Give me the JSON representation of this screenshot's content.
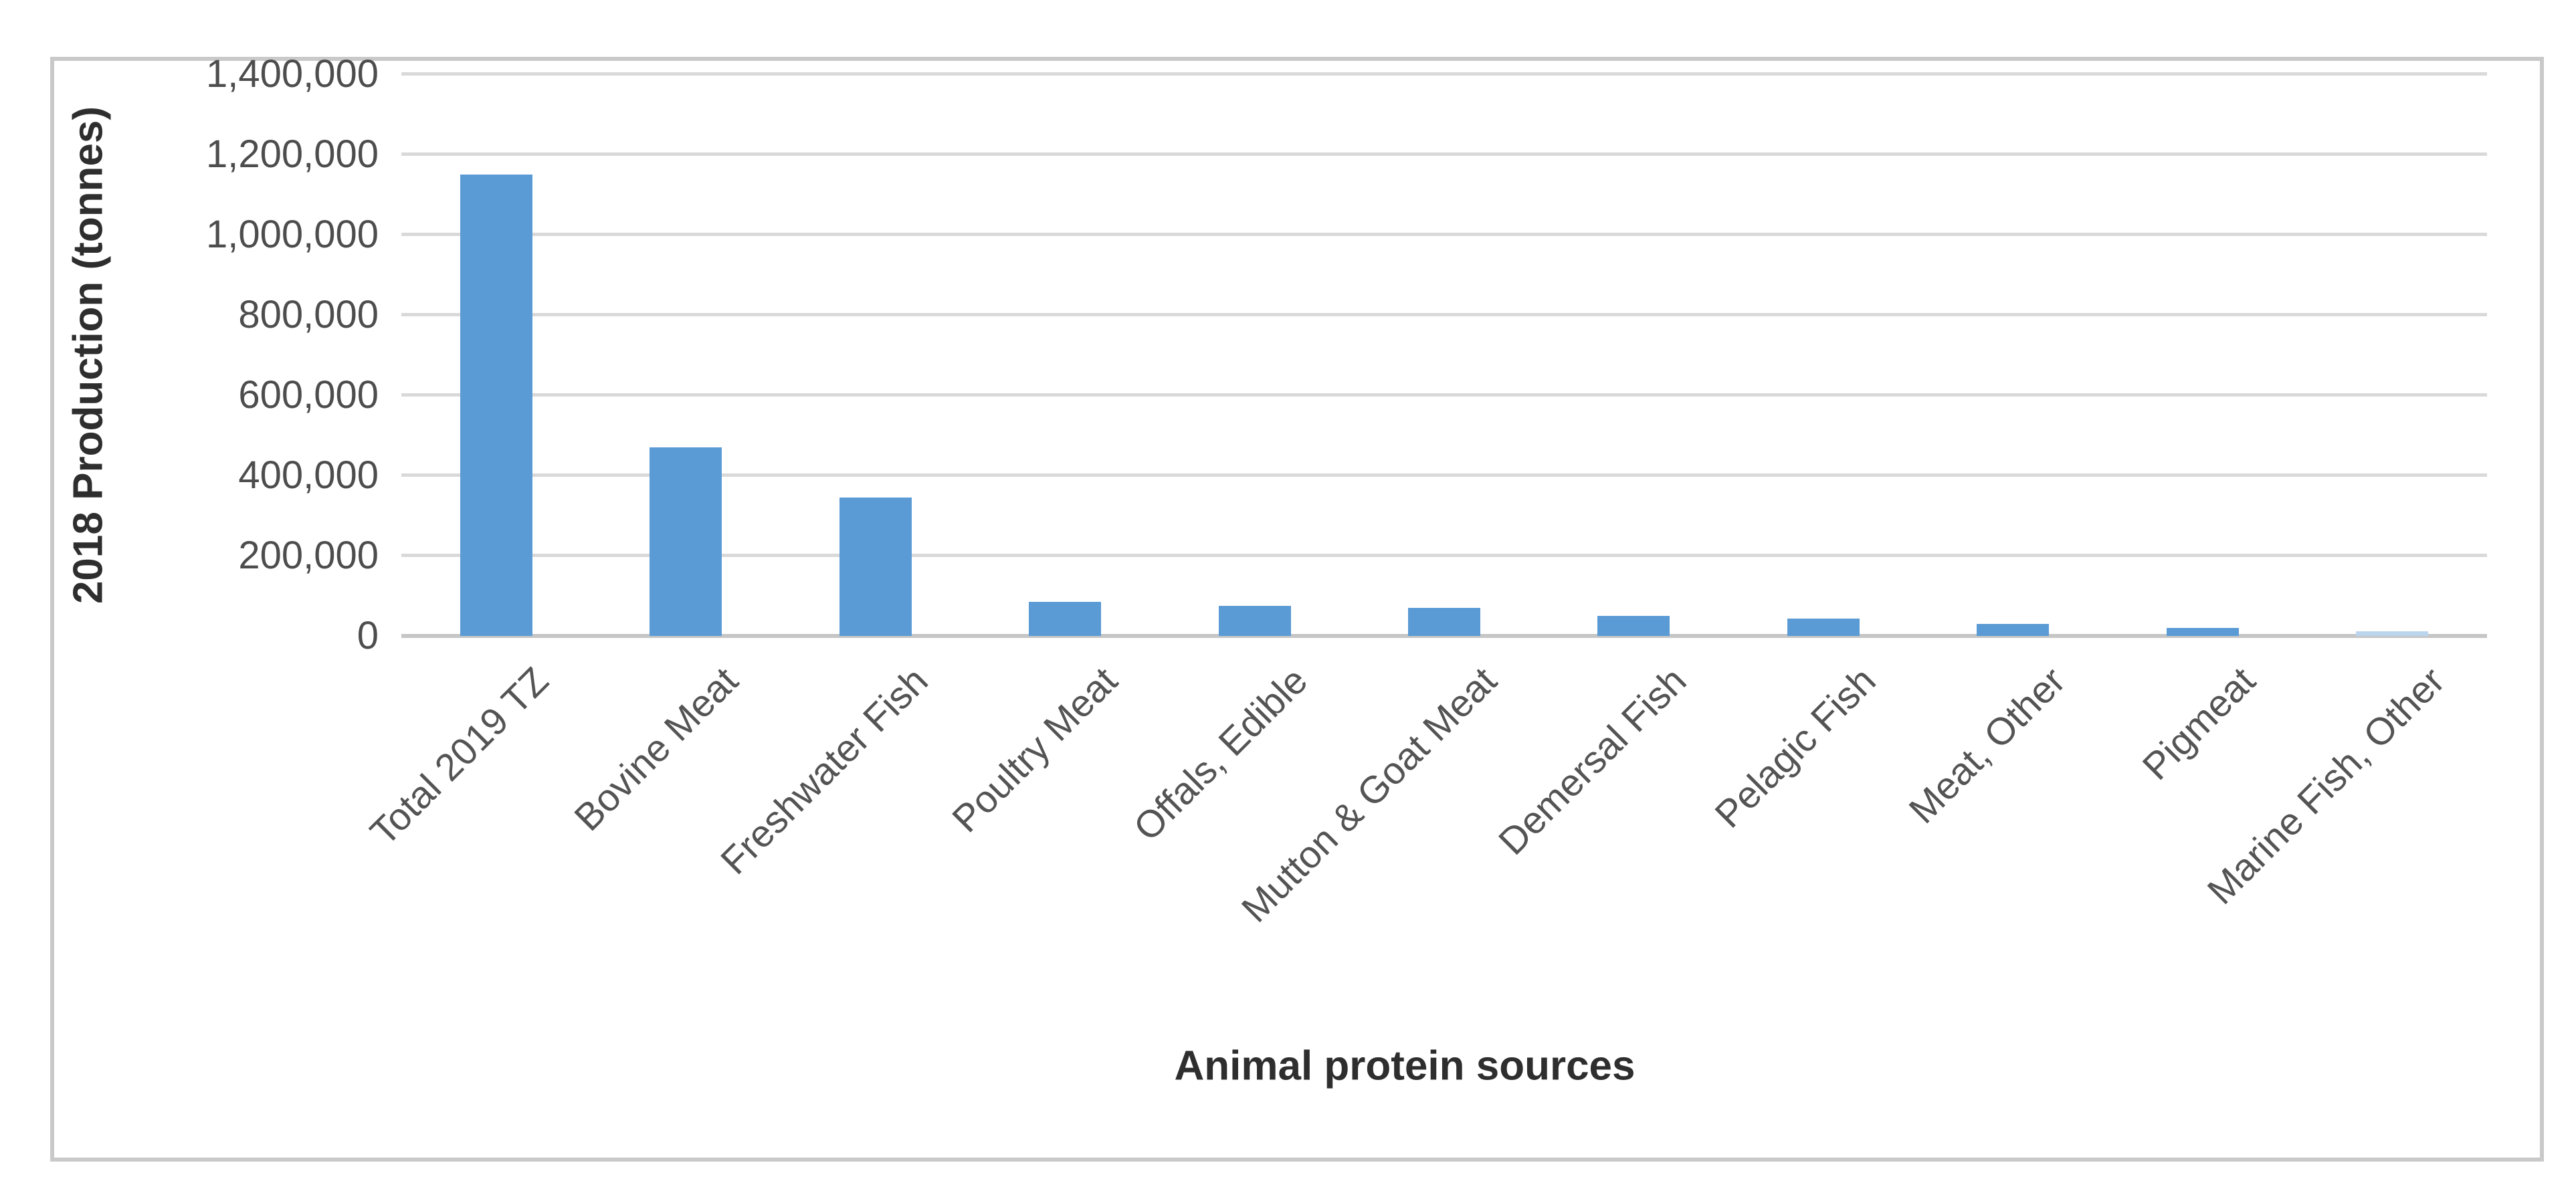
{
  "chart_data": {
    "type": "bar",
    "title": "",
    "categories": [
      "Total 2019 TZ",
      "Bovine Meat",
      "Freshwater Fish",
      "Poultry Meat",
      "Offals, Edible",
      "Mutton & Goat Meat",
      "Demersal Fish",
      "Pelagic Fish",
      "Meat, Other",
      "Pigmeat",
      "Marine Fish, Other"
    ],
    "values": [
      1150000,
      470000,
      345000,
      85000,
      75000,
      70000,
      50000,
      43000,
      30000,
      20000,
      12000
    ],
    "bar_colors": [
      "#5B9BD5",
      "#5B9BD5",
      "#5B9BD5",
      "#5B9BD5",
      "#5B9BD5",
      "#5B9BD5",
      "#5B9BD5",
      "#5B9BD5",
      "#5B9BD5",
      "#5B9BD5",
      "#BCD5EE"
    ],
    "xlabel": "Animal protein sources",
    "ylabel": "2018 Production (tonnes)",
    "ylim": [
      0,
      1400000
    ],
    "ytick_step": 200000,
    "ytick_labels": [
      "0",
      "200,000",
      "400,000",
      "600,000",
      "800,000",
      "1,000,000",
      "1,200,000",
      "1,400,000"
    ],
    "grid": true,
    "legend": false,
    "x_tick_rotation_deg": 45
  },
  "colors": {
    "bar_fill": "#5B9BD5",
    "pale_bar_fill": "#BCD5EE",
    "gridline": "#D9D9D9",
    "axis_line": "#C6C6C6",
    "tick_text": "#4D4D4D",
    "title_text": "#2E2E2E",
    "figure_border": "#C9C9C9",
    "background": "#FFFFFF"
  }
}
